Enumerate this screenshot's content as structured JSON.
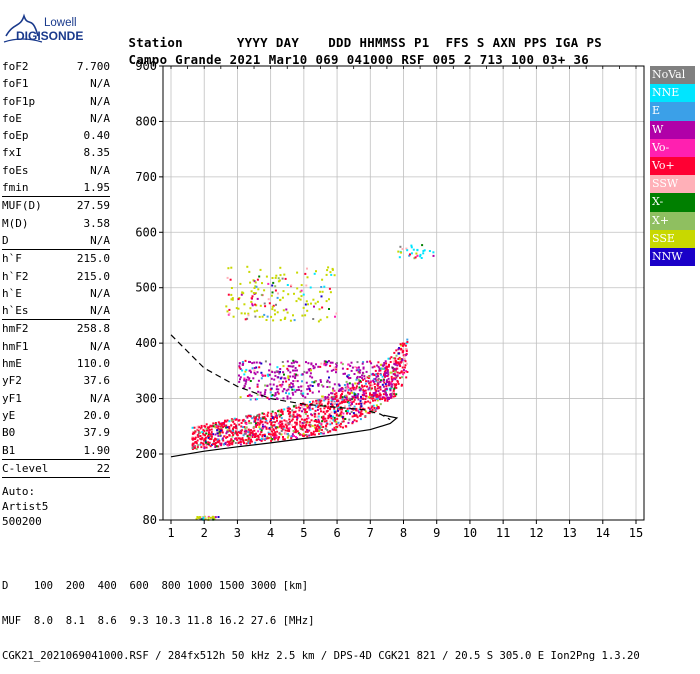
{
  "logo": {
    "line1": "Lowell",
    "line2": "DIGISONDE"
  },
  "header": {
    "row1": [
      "Station",
      "YYYY",
      "DAY",
      "DDD",
      "HHMMSS",
      "P1",
      "FFS",
      "S",
      "AXN",
      "PPS",
      "IGA",
      "PS"
    ],
    "row2": [
      "Campo Grande",
      "2021",
      "Mar10",
      "069",
      "041000",
      "RSF",
      "005",
      "2",
      "713",
      "100",
      "03+",
      "36"
    ]
  },
  "params": [
    {
      "name": "foF2",
      "value": "7.700"
    },
    {
      "name": "foF1",
      "value": "N/A"
    },
    {
      "name": "foF1p",
      "value": "N/A"
    },
    {
      "name": "foE",
      "value": "N/A"
    },
    {
      "name": "foEp",
      "value": "0.40"
    },
    {
      "name": "fxI",
      "value": "8.35"
    },
    {
      "name": "foEs",
      "value": "N/A"
    },
    {
      "name": "fmin",
      "value": "1.95"
    },
    {
      "sep": true
    },
    {
      "name": "MUF(D)",
      "value": "27.59"
    },
    {
      "name": "M(D)",
      "value": "3.58"
    },
    {
      "name": "D",
      "value": "N/A"
    },
    {
      "sep": true
    },
    {
      "name": "h`F",
      "value": "215.0"
    },
    {
      "name": "h`F2",
      "value": "215.0"
    },
    {
      "name": "h`E",
      "value": "N/A"
    },
    {
      "name": "h`Es",
      "value": "N/A"
    },
    {
      "sep": true
    },
    {
      "name": "hmF2",
      "value": "258.8"
    },
    {
      "name": "hmF1",
      "value": "N/A"
    },
    {
      "name": "hmE",
      "value": "110.0"
    },
    {
      "name": "yF2",
      "value": "37.6"
    },
    {
      "name": "yF1",
      "value": "N/A"
    },
    {
      "name": "yE",
      "value": "20.0"
    },
    {
      "name": "B0",
      "value": "37.9"
    },
    {
      "name": "B1",
      "value": "1.90"
    },
    {
      "sep": true
    },
    {
      "name": "C-level",
      "value": "22"
    },
    {
      "sep": true
    }
  ],
  "auto": {
    "line1": "Auto:",
    "line2": "Artist5",
    "line3": "500200"
  },
  "legend": [
    {
      "label": "NoVal",
      "color": "#808080",
      "text_color": "#ffffff"
    },
    {
      "label": "NNE",
      "color": "#00e5ff",
      "text_color": "#ffffff"
    },
    {
      "label": "E",
      "color": "#3ba0e8",
      "text_color": "#ffffff"
    },
    {
      "label": "W",
      "color": "#b000a8",
      "text_color": "#ffffff"
    },
    {
      "label": "Vo-",
      "color": "#ff20b0",
      "text_color": "#ffffff"
    },
    {
      "label": "Vo+",
      "color": "#ff0033",
      "text_color": "#ffffff"
    },
    {
      "label": "SSW",
      "color": "#ffb0b8",
      "text_color": "#ffffff"
    },
    {
      "label": "X-",
      "color": "#007f00",
      "text_color": "#ffffff"
    },
    {
      "label": "X+",
      "color": "#8fbf60",
      "text_color": "#ffffff"
    },
    {
      "label": "SSE",
      "color": "#c8d800",
      "text_color": "#ffffff"
    },
    {
      "label": "NNW",
      "color": "#1a00c8",
      "text_color": "#ffffff"
    }
  ],
  "chart_data": {
    "type": "scatter",
    "xlim": [
      1,
      15
    ],
    "ylim": [
      80,
      900
    ],
    "x_ticks": [
      1,
      2,
      3,
      4,
      5,
      6,
      7,
      8,
      9,
      10,
      11,
      12,
      13,
      14,
      15
    ],
    "y_ticks": [
      80,
      200,
      300,
      400,
      500,
      600,
      700,
      800,
      900
    ],
    "grid": true,
    "trace_clusters": [
      {
        "name": "F2 trace",
        "x_range": [
          1.6,
          8.1
        ],
        "h_range": [
          210,
          410
        ],
        "dominant": "Vo+"
      },
      {
        "name": "F2 upper band",
        "x_range": [
          3.0,
          7.8
        ],
        "h_range": [
          300,
          370
        ],
        "dominant": "W"
      },
      {
        "name": "spread",
        "x_range": [
          2.6,
          6.0
        ],
        "h_range": [
          440,
          540
        ],
        "dominant": "SSE"
      },
      {
        "name": "high echoes",
        "x_range": [
          7.7,
          8.9
        ],
        "h_range": [
          555,
          580
        ],
        "dominant": "NNE"
      },
      {
        "name": "low echoes",
        "x_range": [
          1.7,
          2.4
        ],
        "h_range": [
          82,
          88
        ],
        "dominant": "SSE"
      }
    ],
    "curves": [
      {
        "name": "dashed",
        "style": "dashed",
        "points": [
          [
            1,
            415
          ],
          [
            1.5,
            385
          ],
          [
            2,
            355
          ],
          [
            3,
            322
          ],
          [
            4,
            300
          ],
          [
            5,
            290
          ],
          [
            6,
            284
          ],
          [
            6.8,
            280
          ],
          [
            7.3,
            272
          ],
          [
            7.6,
            262
          ]
        ]
      },
      {
        "name": "solid",
        "style": "solid",
        "points": [
          [
            1,
            195
          ],
          [
            2,
            205
          ],
          [
            3,
            213
          ],
          [
            4,
            220
          ],
          [
            5,
            228
          ],
          [
            6,
            235
          ],
          [
            7,
            244
          ],
          [
            7.6,
            255
          ],
          [
            7.8,
            265
          ],
          [
            7.4,
            270
          ]
        ]
      }
    ]
  },
  "footer": {
    "line1": "D    100  200  400  600  800 1000 1500 3000 [km]",
    "line2": "MUF  8.0  8.1  8.6  9.3 10.3 11.8 16.2 27.6 [MHz]",
    "line3": "CGK21_2021069041000.RSF / 284fx512h 50 kHz 2.5 km / DPS-4D CGK21 821 / 20.5 S 305.0 E Ion2Png 1.3.20"
  }
}
